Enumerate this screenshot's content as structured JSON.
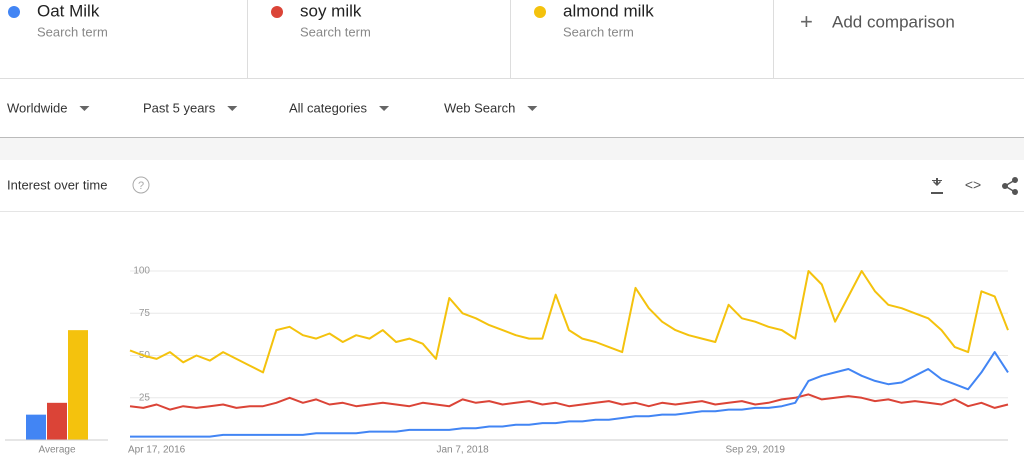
{
  "header": {
    "term_label": [
      "Search term",
      "Search term",
      "Search term"
    ],
    "add": "Add comparison"
  },
  "filters": [
    "Worldwide",
    "Past 5 years",
    "All categories",
    "Web Search"
  ],
  "section_title": "Interest over time",
  "chart_data": [
    {
      "type": "line",
      "categories": [
        null,
        null,
        "Apr 17, 2016",
        null,
        null,
        null,
        null,
        null,
        null,
        null,
        null,
        null,
        null,
        null,
        null,
        null,
        null,
        null,
        null,
        null,
        null,
        null,
        null,
        null,
        null,
        "Jan 7, 2018",
        null,
        null,
        null,
        null,
        null,
        null,
        null,
        null,
        null,
        null,
        null,
        null,
        null,
        null,
        null,
        null,
        null,
        null,
        null,
        null,
        null,
        "Sep 29, 2019",
        null,
        null,
        null,
        null,
        null,
        null,
        null,
        null,
        null,
        null,
        null,
        null,
        null,
        null,
        null,
        null,
        null,
        null,
        null
      ],
      "ylim": [
        0,
        100
      ],
      "yticks": [
        25,
        50,
        75,
        100
      ],
      "grid": true,
      "series": [
        {
          "name": "Oat Milk",
          "color": "#4285f4",
          "values": [
            2,
            2,
            2,
            2,
            2,
            2,
            2,
            3,
            3,
            3,
            3,
            3,
            3,
            3,
            4,
            4,
            4,
            4,
            5,
            5,
            5,
            6,
            6,
            6,
            6,
            7,
            7,
            8,
            8,
            9,
            9,
            10,
            10,
            11,
            11,
            12,
            12,
            13,
            14,
            14,
            15,
            15,
            16,
            17,
            17,
            18,
            18,
            19,
            19,
            20,
            22,
            35,
            38,
            40,
            42,
            38,
            35,
            33,
            34,
            38,
            42,
            36,
            33,
            30,
            40,
            52,
            40
          ]
        },
        {
          "name": "soy milk",
          "color": "#db4437",
          "values": [
            20,
            19,
            21,
            18,
            20,
            19,
            20,
            21,
            19,
            20,
            20,
            22,
            25,
            22,
            24,
            21,
            22,
            20,
            21,
            22,
            21,
            20,
            22,
            21,
            20,
            24,
            22,
            23,
            21,
            22,
            23,
            21,
            22,
            20,
            21,
            22,
            23,
            21,
            22,
            20,
            22,
            21,
            22,
            23,
            21,
            22,
            23,
            21,
            22,
            24,
            25,
            27,
            24,
            25,
            26,
            25,
            23,
            24,
            22,
            23,
            22,
            21,
            24,
            20,
            22,
            19,
            21
          ]
        },
        {
          "name": "almond milk",
          "color": "#f4c20d",
          "values": [
            53,
            50,
            48,
            52,
            46,
            50,
            47,
            52,
            48,
            44,
            40,
            65,
            67,
            62,
            60,
            63,
            58,
            62,
            60,
            65,
            58,
            60,
            57,
            48,
            84,
            75,
            72,
            68,
            65,
            62,
            60,
            60,
            86,
            65,
            60,
            58,
            55,
            52,
            90,
            78,
            70,
            65,
            62,
            60,
            58,
            80,
            72,
            70,
            67,
            65,
            60,
            100,
            92,
            70,
            85,
            100,
            88,
            80,
            78,
            75,
            72,
            65,
            55,
            52,
            88,
            85,
            65
          ]
        }
      ]
    },
    {
      "type": "bar",
      "categories": [
        "Average"
      ],
      "ylim": [
        0,
        100
      ],
      "series": [
        {
          "color": "#4285f4",
          "values": [
            15
          ]
        },
        {
          "color": "#db4437",
          "values": [
            22
          ]
        },
        {
          "color": "#f4c20d",
          "values": [
            65
          ]
        }
      ]
    }
  ]
}
